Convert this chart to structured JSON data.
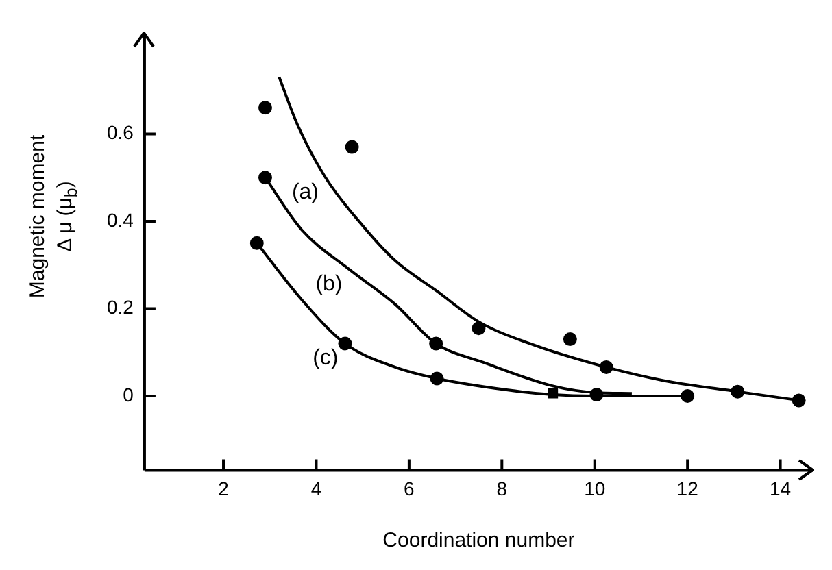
{
  "chart_data": {
    "type": "scatter",
    "xlabel": "Coordination number",
    "ylabel": "Magnetic moment\nΔ μ (μ$_{b}$)",
    "xlim": [
      0.3,
      14.7
    ],
    "ylim": [
      -0.17,
      0.83
    ],
    "xticks": [
      2,
      4,
      6,
      8,
      10,
      12,
      14
    ],
    "yticks": [
      0,
      0.2,
      0.4,
      0.6
    ],
    "grid": false,
    "legend": false,
    "series": [
      {
        "color": "#000000",
        "marker": "circle",
        "x": [
          2.9,
          4.77,
          2.9,
          2.72,
          4.62,
          6.58,
          6.6,
          7.5,
          9.47,
          10.25,
          10.04,
          12.0,
          13.08,
          14.4
        ],
        "values": [
          0.66,
          0.57,
          0.5,
          0.35,
          0.12,
          0.12,
          0.04,
          0.155,
          0.13,
          0.066,
          0.003,
          0,
          0.01,
          -0.01
        ]
      },
      {
        "color": "#000000",
        "marker": "square",
        "x": [
          9.1
        ],
        "values": [
          0.006
        ]
      },
      {
        "type": "line",
        "name": "(a)",
        "color": "#000000",
        "marker": "none",
        "x": [
          3.2,
          3.6,
          4.2,
          5.0,
          5.7,
          6.6,
          7.5,
          8.6,
          10.25,
          11.5,
          13.08,
          14.4
        ],
        "values": [
          0.73,
          0.62,
          0.5,
          0.39,
          0.31,
          0.24,
          0.17,
          0.12,
          0.066,
          0.035,
          0.01,
          -0.01
        ]
      },
      {
        "type": "line",
        "name": "(b)",
        "color": "#000000",
        "marker": "none",
        "x": [
          2.9,
          3.69,
          4.71,
          5.7,
          6.58,
          7.6,
          9.1,
          10.0,
          10.8
        ],
        "values": [
          0.5,
          0.38,
          0.29,
          0.21,
          0.12,
          0.077,
          0.023,
          0.008,
          0.006
        ]
      },
      {
        "type": "line",
        "name": "(c)",
        "color": "#000000",
        "marker": "none",
        "x": [
          2.72,
          3.69,
          4.62,
          5.7,
          6.6,
          8.1,
          9.1,
          10.0,
          12.0
        ],
        "values": [
          0.35,
          0.22,
          0.12,
          0.066,
          0.04,
          0.014,
          0.003,
          0,
          0
        ]
      }
    ]
  }
}
